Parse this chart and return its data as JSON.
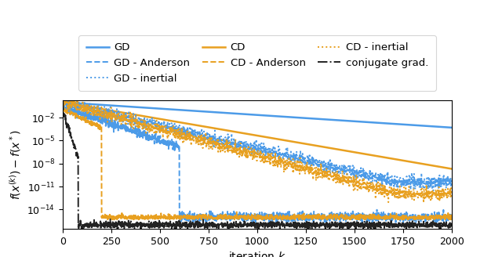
{
  "blue": "#4C9BE8",
  "orange": "#E8A020",
  "black": "#222222",
  "n_iter": 2000,
  "legend_fontsize": 9.5,
  "tick_fontsize": 9,
  "label_fontsize": 10,
  "xlabel": "iteration $k$",
  "ylabel": "$f(x^{(k)}) - f(x^*)$",
  "ylim_log": [
    -16.5,
    0.3
  ],
  "xlim": [
    0,
    2000
  ],
  "legend_entries": [
    [
      "GD",
      "solid",
      "blue"
    ],
    [
      "GD - Anderson",
      "dashed",
      "blue"
    ],
    [
      "GD - inertial",
      "dotted",
      "blue"
    ],
    [
      "CD",
      "solid",
      "orange"
    ],
    [
      "CD - Anderson",
      "dashed",
      "orange"
    ],
    [
      "CD - inertial",
      "dotted",
      "orange"
    ],
    [
      "conjugate grad.",
      "dashdot",
      "black"
    ]
  ]
}
